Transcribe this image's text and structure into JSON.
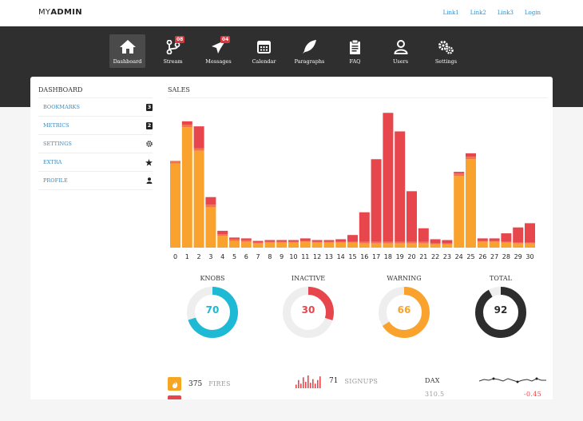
{
  "brand": {
    "prefix": "MY",
    "name": "ADMIN"
  },
  "top_links": [
    "Link1",
    "Link2",
    "Link3",
    "Login"
  ],
  "nav": [
    {
      "label": "Dashboard",
      "icon": "home-icon",
      "active": true,
      "badge": ""
    },
    {
      "label": "Stream",
      "icon": "branch-icon",
      "active": false,
      "badge": "08"
    },
    {
      "label": "Messages",
      "icon": "paper-plane-icon",
      "active": false,
      "badge": "04"
    },
    {
      "label": "Calendar",
      "icon": "calendar-icon",
      "active": false,
      "badge": ""
    },
    {
      "label": "Paragraphs",
      "icon": "feather-icon",
      "active": false,
      "badge": ""
    },
    {
      "label": "FAQ",
      "icon": "clipboard-icon",
      "active": false,
      "badge": ""
    },
    {
      "label": "Users",
      "icon": "users-icon",
      "active": false,
      "badge": ""
    },
    {
      "label": "Settings",
      "icon": "gears-icon",
      "active": false,
      "badge": ""
    }
  ],
  "sidebar": {
    "title": "DASHBOARD",
    "items": [
      {
        "label": "BOOKMARKS",
        "badge": "3",
        "icon": ""
      },
      {
        "label": "METRICS",
        "badge": "2",
        "icon": ""
      },
      {
        "label": "SETTINGS",
        "badge": "",
        "icon": "gear-icon"
      },
      {
        "label": "EXTRA",
        "badge": "",
        "icon": "star-icon"
      },
      {
        "label": "PROFILE",
        "badge": "",
        "icon": "user-icon"
      }
    ]
  },
  "sales": {
    "title": "SALES"
  },
  "chart_data": {
    "type": "bar",
    "title": "SALES",
    "stacked": true,
    "categories": [
      "0",
      "1",
      "2",
      "3",
      "4",
      "5",
      "6",
      "7",
      "8",
      "9",
      "10",
      "11",
      "12",
      "13",
      "14",
      "15",
      "16",
      "17",
      "18",
      "19",
      "20",
      "21",
      "22",
      "23",
      "24",
      "25",
      "26",
      "27",
      "28",
      "29",
      "30"
    ],
    "series": [
      {
        "color": "#f9a32e",
        "values": [
          100,
          143,
          115,
          48,
          14,
          8,
          7,
          5,
          6,
          6,
          6,
          7,
          6,
          6,
          6,
          6,
          5,
          5,
          5,
          5,
          5,
          5,
          4,
          4,
          85,
          105,
          7,
          7,
          6,
          5,
          5
        ]
      },
      {
        "color": "#f2734a",
        "values": [
          3,
          3,
          3,
          3,
          2,
          2,
          2,
          1,
          1,
          1,
          1,
          1,
          1,
          1,
          1,
          1,
          2,
          2,
          2,
          2,
          2,
          2,
          1,
          1,
          3,
          3,
          1,
          1,
          1,
          1,
          1
        ]
      },
      {
        "color": "#e6464c",
        "values": [
          0,
          4,
          26,
          9,
          4,
          2,
          2,
          2,
          2,
          2,
          2,
          3,
          2,
          2,
          3,
          8,
          35,
          98,
          153,
          131,
          60,
          16,
          5,
          4,
          2,
          4,
          3,
          3,
          10,
          18,
          23
        ]
      }
    ],
    "ylim": [
      0,
      165
    ],
    "grid": false
  },
  "donuts": [
    {
      "label": "KNOBS",
      "value": 70,
      "color": "#1eb9d4"
    },
    {
      "label": "INACTIVE",
      "value": 30,
      "color": "#e6464c"
    },
    {
      "label": "WARNING",
      "value": 66,
      "color": "#f9a32e"
    },
    {
      "label": "TOTAL",
      "value": 92,
      "color": "#2d2d2d"
    }
  ],
  "stats": {
    "fires": {
      "value": "375",
      "label": "FIRES",
      "icon": "fire-icon"
    },
    "signups": {
      "value": "71",
      "label": "SIGNUPS",
      "spark": [
        4,
        9,
        5,
        12,
        7,
        14,
        6,
        10,
        5,
        9,
        13
      ]
    },
    "dax": {
      "label": "DAX",
      "value": "310.5",
      "change": "-0.45"
    }
  },
  "colors": {
    "accent": "#2a8fd0",
    "dark": "#2f2f2f",
    "red": "#e6464c",
    "orange": "#f9a32e",
    "cyan": "#1eb9d4"
  }
}
